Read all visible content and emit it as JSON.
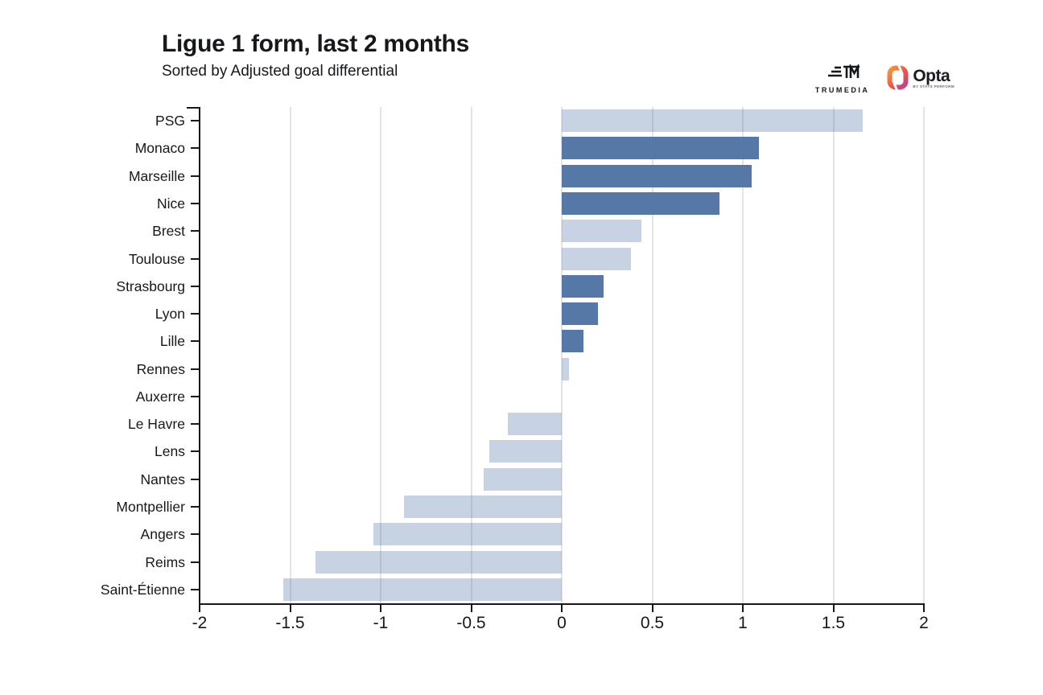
{
  "header": {
    "title": "Ligue 1 form, last 2 months",
    "subtitle": "Sorted by Adjusted goal differential"
  },
  "branding": {
    "trumedia_label": "TRUMEDIA",
    "opta_label": "Opta",
    "opta_sublabel": "BY STATS PERFORM"
  },
  "chart_data": {
    "type": "bar",
    "orientation": "horizontal",
    "title": "Ligue 1 form, last 2 months",
    "subtitle": "Sorted by Adjusted goal differential",
    "sort": "Adjusted goal differential, descending",
    "xlim": [
      -2,
      2
    ],
    "x_ticks": [
      -2,
      -1.5,
      -1,
      -0.5,
      0,
      0.5,
      1,
      1.5,
      2
    ],
    "x_tick_labels": [
      "-2",
      "-1.5",
      "-1",
      "-0.5",
      "0",
      "0.5",
      "1",
      "1.5",
      "2"
    ],
    "grid": true,
    "teams": [
      {
        "name": "PSG",
        "value": 1.66,
        "style": "light"
      },
      {
        "name": "Monaco",
        "value": 1.09,
        "style": "dark"
      },
      {
        "name": "Marseille",
        "value": 1.05,
        "style": "dark"
      },
      {
        "name": "Nice",
        "value": 0.87,
        "style": "dark"
      },
      {
        "name": "Brest",
        "value": 0.44,
        "style": "light"
      },
      {
        "name": "Toulouse",
        "value": 0.38,
        "style": "light"
      },
      {
        "name": "Strasbourg",
        "value": 0.23,
        "style": "dark"
      },
      {
        "name": "Lyon",
        "value": 0.2,
        "style": "dark"
      },
      {
        "name": "Lille",
        "value": 0.12,
        "style": "dark"
      },
      {
        "name": "Rennes",
        "value": 0.04,
        "style": "light"
      },
      {
        "name": "Auxerre",
        "value": 0.0,
        "style": "light"
      },
      {
        "name": "Le Havre",
        "value": -0.3,
        "style": "light"
      },
      {
        "name": "Lens",
        "value": -0.4,
        "style": "light"
      },
      {
        "name": "Nantes",
        "value": -0.43,
        "style": "light"
      },
      {
        "name": "Montpellier",
        "value": -0.87,
        "style": "light"
      },
      {
        "name": "Angers",
        "value": -1.04,
        "style": "light"
      },
      {
        "name": "Reims",
        "value": -1.36,
        "style": "light"
      },
      {
        "name": "Saint-Étienne",
        "value": -1.54,
        "style": "light"
      }
    ],
    "colors": {
      "bar_dark": "#5678A7",
      "bar_light": "#C8D3E2",
      "gridline": "#e3e3e8",
      "axis": "#16181c"
    }
  }
}
